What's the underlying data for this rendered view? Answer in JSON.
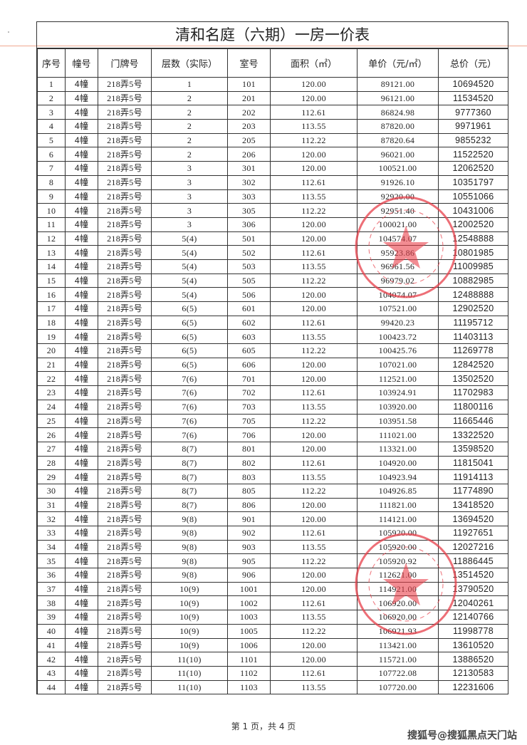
{
  "title": "清和名庭（六期）一房一价表",
  "columns": [
    "序号",
    "幢号",
    "门牌号",
    "层数（实际）",
    "室号",
    "面积（㎡）",
    "单价（元/㎡）",
    "总价（元）"
  ],
  "rows": [
    [
      "1",
      "4幢",
      "218弄5号",
      "1",
      "101",
      "120.00",
      "89121.00",
      "10694520"
    ],
    [
      "2",
      "4幢",
      "218弄5号",
      "2",
      "201",
      "120.00",
      "96121.00",
      "11534520"
    ],
    [
      "3",
      "4幢",
      "218弄5号",
      "2",
      "202",
      "112.61",
      "86824.98",
      "9777360"
    ],
    [
      "4",
      "4幢",
      "218弄5号",
      "2",
      "203",
      "113.55",
      "87820.00",
      "9971961"
    ],
    [
      "5",
      "4幢",
      "218弄5号",
      "2",
      "205",
      "112.22",
      "87820.64",
      "9855232"
    ],
    [
      "6",
      "4幢",
      "218弄5号",
      "2",
      "206",
      "120.00",
      "96021.00",
      "11522520"
    ],
    [
      "7",
      "4幢",
      "218弄5号",
      "3",
      "301",
      "120.00",
      "100521.00",
      "12062520"
    ],
    [
      "8",
      "4幢",
      "218弄5号",
      "3",
      "302",
      "112.61",
      "91926.10",
      "10351797"
    ],
    [
      "9",
      "4幢",
      "218弄5号",
      "3",
      "303",
      "113.55",
      "92920.00",
      "10551066"
    ],
    [
      "10",
      "4幢",
      "218弄5号",
      "3",
      "305",
      "112.22",
      "92951.40",
      "10431006"
    ],
    [
      "11",
      "4幢",
      "218弄5号",
      "3",
      "306",
      "120.00",
      "100021.00",
      "12002520"
    ],
    [
      "12",
      "4幢",
      "218弄5号",
      "5(4)",
      "501",
      "120.00",
      "104574.07",
      "12548888"
    ],
    [
      "13",
      "4幢",
      "218弄5号",
      "5(4)",
      "502",
      "112.61",
      "95923.86",
      "10801985"
    ],
    [
      "14",
      "4幢",
      "218弄5号",
      "5(4)",
      "503",
      "113.55",
      "96961.56",
      "11009985"
    ],
    [
      "15",
      "4幢",
      "218弄5号",
      "5(4)",
      "505",
      "112.22",
      "96979.02",
      "10882985"
    ],
    [
      "16",
      "4幢",
      "218弄5号",
      "5(4)",
      "506",
      "120.00",
      "104074.07",
      "12488888"
    ],
    [
      "17",
      "4幢",
      "218弄5号",
      "6(5)",
      "601",
      "120.00",
      "107521.00",
      "12902520"
    ],
    [
      "18",
      "4幢",
      "218弄5号",
      "6(5)",
      "602",
      "112.61",
      "99420.23",
      "11195712"
    ],
    [
      "19",
      "4幢",
      "218弄5号",
      "6(5)",
      "603",
      "113.55",
      "100423.72",
      "11403113"
    ],
    [
      "20",
      "4幢",
      "218弄5号",
      "6(5)",
      "605",
      "112.22",
      "100425.76",
      "11269778"
    ],
    [
      "21",
      "4幢",
      "218弄5号",
      "6(5)",
      "606",
      "120.00",
      "107021.00",
      "12842520"
    ],
    [
      "22",
      "4幢",
      "218弄5号",
      "7(6)",
      "701",
      "120.00",
      "112521.00",
      "13502520"
    ],
    [
      "23",
      "4幢",
      "218弄5号",
      "7(6)",
      "702",
      "112.61",
      "103924.91",
      "11702983"
    ],
    [
      "24",
      "4幢",
      "218弄5号",
      "7(6)",
      "703",
      "113.55",
      "103920.00",
      "11800116"
    ],
    [
      "25",
      "4幢",
      "218弄5号",
      "7(6)",
      "705",
      "112.22",
      "103951.58",
      "11665446"
    ],
    [
      "26",
      "4幢",
      "218弄5号",
      "7(6)",
      "706",
      "120.00",
      "111021.00",
      "13322520"
    ],
    [
      "27",
      "4幢",
      "218弄5号",
      "8(7)",
      "801",
      "120.00",
      "113321.00",
      "13598520"
    ],
    [
      "28",
      "4幢",
      "218弄5号",
      "8(7)",
      "802",
      "112.61",
      "104920.00",
      "11815041"
    ],
    [
      "29",
      "4幢",
      "218弄5号",
      "8(7)",
      "803",
      "113.55",
      "104923.94",
      "11914113"
    ],
    [
      "30",
      "4幢",
      "218弄5号",
      "8(7)",
      "805",
      "112.22",
      "104926.85",
      "11774890"
    ],
    [
      "31",
      "4幢",
      "218弄5号",
      "8(7)",
      "806",
      "120.00",
      "111821.00",
      "13418520"
    ],
    [
      "32",
      "4幢",
      "218弄5号",
      "9(8)",
      "901",
      "120.00",
      "114121.00",
      "13694520"
    ],
    [
      "33",
      "4幢",
      "218弄5号",
      "9(8)",
      "902",
      "112.61",
      "105920.00",
      "11927651"
    ],
    [
      "34",
      "4幢",
      "218弄5号",
      "9(8)",
      "903",
      "113.55",
      "105920.00",
      "12027216"
    ],
    [
      "35",
      "4幢",
      "218弄5号",
      "9(8)",
      "905",
      "112.22",
      "105920.92",
      "11886445"
    ],
    [
      "36",
      "4幢",
      "218弄5号",
      "9(8)",
      "906",
      "120.00",
      "112621.00",
      "13514520"
    ],
    [
      "37",
      "4幢",
      "218弄5号",
      "10(9)",
      "1001",
      "120.00",
      "114921.00",
      "13790520"
    ],
    [
      "38",
      "4幢",
      "218弄5号",
      "10(9)",
      "1002",
      "112.61",
      "106920.00",
      "12040261"
    ],
    [
      "39",
      "4幢",
      "218弄5号",
      "10(9)",
      "1003",
      "113.55",
      "106920.00",
      "12140766"
    ],
    [
      "40",
      "4幢",
      "218弄5号",
      "10(9)",
      "1005",
      "112.22",
      "106921.93",
      "11998778"
    ],
    [
      "41",
      "4幢",
      "218弄5号",
      "10(9)",
      "1006",
      "120.00",
      "113421.00",
      "13610520"
    ],
    [
      "42",
      "4幢",
      "218弄5号",
      "11(10)",
      "1101",
      "120.00",
      "115721.00",
      "13886520"
    ],
    [
      "43",
      "4幢",
      "218弄5号",
      "11(10)",
      "1102",
      "112.61",
      "107722.08",
      "12130583"
    ],
    [
      "44",
      "4幢",
      "218弄5号",
      "11(10)",
      "1103",
      "113.55",
      "107720.00",
      "12231606"
    ]
  ],
  "footer": {
    "page_info": "第 1 页，共 4 页"
  },
  "watermark": "搜狐号@搜狐黑点天门站",
  "colors": {
    "stamp": "#e8404a",
    "ink": "#222222",
    "rule": "#f0a890"
  }
}
